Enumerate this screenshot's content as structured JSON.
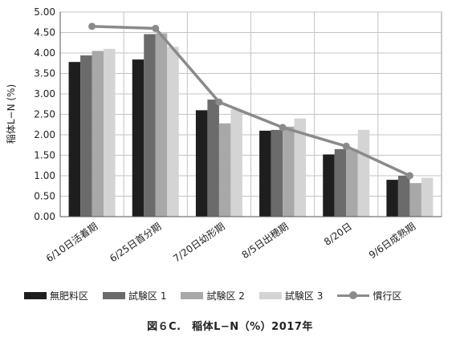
{
  "chart_data": {
    "type": "bar",
    "title": "図６C.　稲体L−N（%）2017年",
    "ylabel": "稲体L−N (%)",
    "xlabel": "",
    "ylim": [
      0,
      5
    ],
    "yticks": [
      "0.00",
      "0.50",
      "1.00",
      "1.50",
      "2.00",
      "2.50",
      "3.00",
      "3.50",
      "4.00",
      "4.50",
      "5.00"
    ],
    "categories": [
      "6/10日活着期",
      "6/25日首分期",
      "7/20日幼形期",
      "8/5日出穂期",
      "8/20日",
      "9/6日成熟期"
    ],
    "series": [
      {
        "name": "無肥料区",
        "type": "bar",
        "color": "#1e1e1e",
        "values": [
          3.78,
          3.84,
          2.6,
          2.1,
          1.52,
          0.9
        ]
      },
      {
        "name": "試験区 1",
        "type": "bar",
        "color": "#6b6b6b",
        "values": [
          3.94,
          4.46,
          2.86,
          2.12,
          1.65,
          1.0
        ]
      },
      {
        "name": "試験区 2",
        "type": "bar",
        "color": "#a8a8a8",
        "values": [
          4.05,
          4.48,
          2.28,
          2.2,
          1.65,
          0.82
        ]
      },
      {
        "name": "試験区 3",
        "type": "bar",
        "color": "#d4d4d4",
        "values": [
          4.1,
          4.15,
          2.62,
          2.4,
          2.12,
          0.95
        ]
      },
      {
        "name": "慣行区",
        "type": "line",
        "color": "#8a8a8a",
        "values": [
          4.65,
          4.6,
          2.8,
          2.18,
          1.72,
          1.0
        ]
      }
    ],
    "grid": true,
    "legend_position": "bottom"
  }
}
